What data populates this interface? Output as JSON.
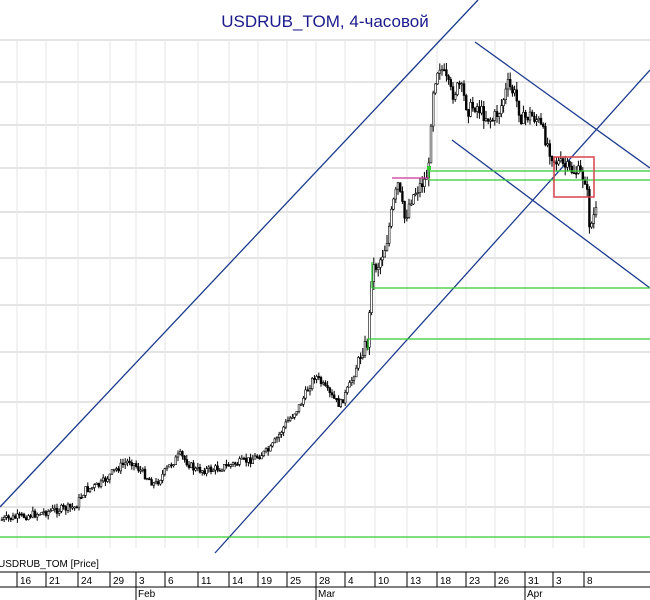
{
  "chart_data": {
    "type": "candlestick",
    "title": "USDRUB_TOM, 4-часовой",
    "panel_label": "USDRUB_TOM [Price]",
    "x_ticks": [
      "16",
      "21",
      "24",
      "29",
      "3",
      "6",
      "11",
      "14",
      "19",
      "25",
      "28",
      "4",
      "10",
      "13",
      "18",
      "23",
      "26",
      "31",
      "3",
      "8"
    ],
    "month_labels": [
      "Feb",
      "Mar",
      "Apr"
    ],
    "grid": true,
    "colors": {
      "title": "#1a1a8c",
      "channel": "#1a3a8c",
      "support_line": "#33cc33",
      "price_line": "#cc3399",
      "highlight_box": "#d9434f",
      "candle": "#000000",
      "grid": "#c8c8c8"
    }
  }
}
